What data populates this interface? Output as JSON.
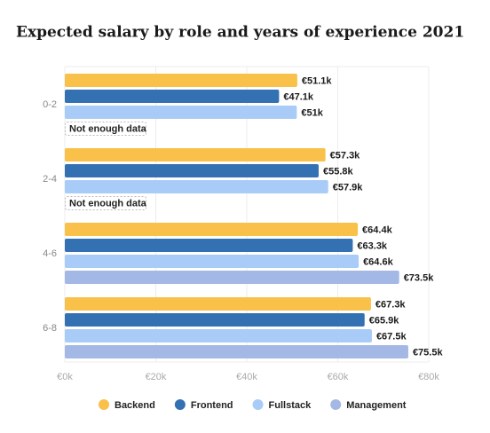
{
  "chart_data": {
    "type": "hbar",
    "title": "Expected salary by role and years of experience 2021",
    "categories": [
      "0-2",
      "2-4",
      "4-6",
      "6-8"
    ],
    "series": [
      {
        "name": "Backend",
        "color": "#f9c04a",
        "values": [
          51.1,
          57.3,
          64.4,
          67.3
        ],
        "value_labels": [
          "€51.1k",
          "€57.3k",
          "€64.4k",
          "€67.3k"
        ]
      },
      {
        "name": "Frontend",
        "color": "#3471b3",
        "values": [
          47.1,
          55.8,
          63.3,
          65.9
        ],
        "value_labels": [
          "€47.1k",
          "€55.8k",
          "€63.3k",
          "€65.9k"
        ]
      },
      {
        "name": "Fullstack",
        "color": "#a8ccf7",
        "values": [
          51,
          57.9,
          64.6,
          67.5
        ],
        "value_labels": [
          "€51k",
          "€57.9k",
          "€64.6k",
          "€67.5k"
        ]
      },
      {
        "name": "Management",
        "color": "#a3b8e4",
        "values": [
          null,
          null,
          73.5,
          75.5
        ],
        "value_labels": [
          null,
          null,
          "€73.5k",
          "€75.5k"
        ]
      }
    ],
    "null_label": "Not enough data",
    "xlim": [
      0,
      80
    ],
    "xticks": [
      {
        "value": 0,
        "label": "€0k"
      },
      {
        "value": 20,
        "label": "€20k"
      },
      {
        "value": 40,
        "label": "€40k"
      },
      {
        "value": 60,
        "label": "€60k"
      },
      {
        "value": 80,
        "label": "€80k"
      }
    ],
    "grid": true,
    "legend": "bottom"
  }
}
